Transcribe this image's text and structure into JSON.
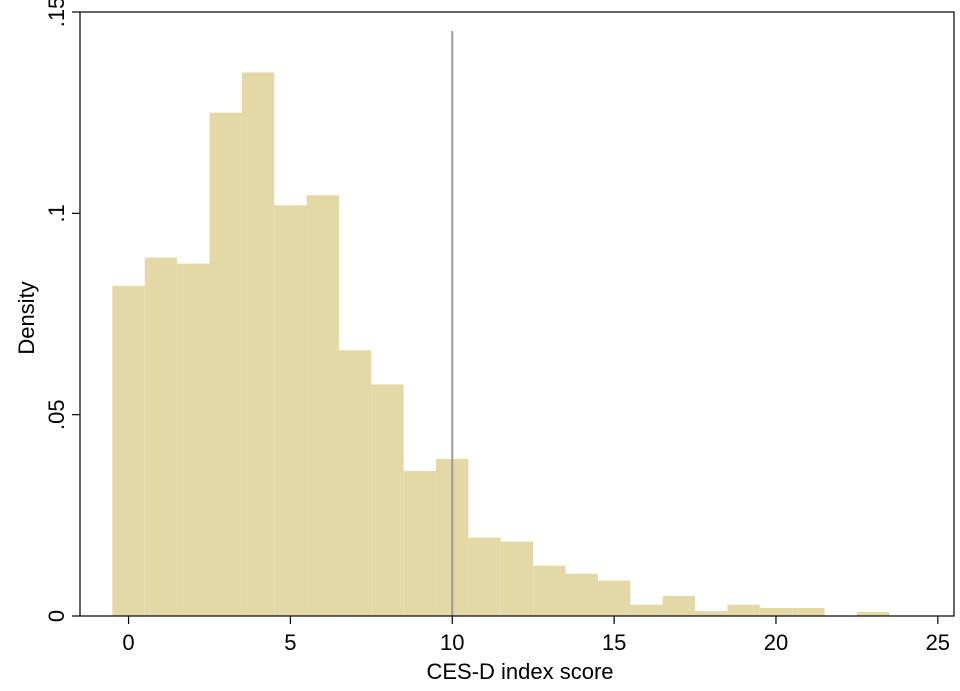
{
  "chart_data": {
    "type": "bar",
    "xlabel": "CES-D index score",
    "ylabel": "Density",
    "xlim": [
      -1.5,
      25.5
    ],
    "ylim": [
      0,
      0.15
    ],
    "xticks": [
      0,
      5,
      10,
      15,
      20,
      25
    ],
    "xtick_labels": [
      "0",
      "5",
      "10",
      "15",
      "20",
      "25"
    ],
    "yticks": [
      0,
      0.05,
      0.1,
      0.15
    ],
    "ytick_labels": [
      "0",
      ".05",
      ".1",
      ".15"
    ],
    "bin_width": 1,
    "bins": [
      {
        "x": 0,
        "value": 0.082
      },
      {
        "x": 1,
        "value": 0.089
      },
      {
        "x": 2,
        "value": 0.0875
      },
      {
        "x": 3,
        "value": 0.125
      },
      {
        "x": 4,
        "value": 0.135
      },
      {
        "x": 5,
        "value": 0.102
      },
      {
        "x": 6,
        "value": 0.1045
      },
      {
        "x": 7,
        "value": 0.066
      },
      {
        "x": 8,
        "value": 0.0575
      },
      {
        "x": 9,
        "value": 0.036
      },
      {
        "x": 10,
        "value": 0.039
      },
      {
        "x": 11,
        "value": 0.0195
      },
      {
        "x": 12,
        "value": 0.0185
      },
      {
        "x": 13,
        "value": 0.0125
      },
      {
        "x": 14,
        "value": 0.0105
      },
      {
        "x": 15,
        "value": 0.0088
      },
      {
        "x": 16,
        "value": 0.0028
      },
      {
        "x": 17,
        "value": 0.005
      },
      {
        "x": 18,
        "value": 0.0012
      },
      {
        "x": 19,
        "value": 0.0028
      },
      {
        "x": 20,
        "value": 0.002
      },
      {
        "x": 21,
        "value": 0.002
      },
      {
        "x": 22,
        "value": 0
      },
      {
        "x": 23,
        "value": 0.001
      },
      {
        "x": 24,
        "value": 0
      }
    ],
    "reference_line": {
      "x": 10
    },
    "colors": {
      "bar_fill": "#e4d8a7",
      "reference_line": "#9a9a9a",
      "axis": "#000000",
      "background": "#ffffff"
    }
  }
}
